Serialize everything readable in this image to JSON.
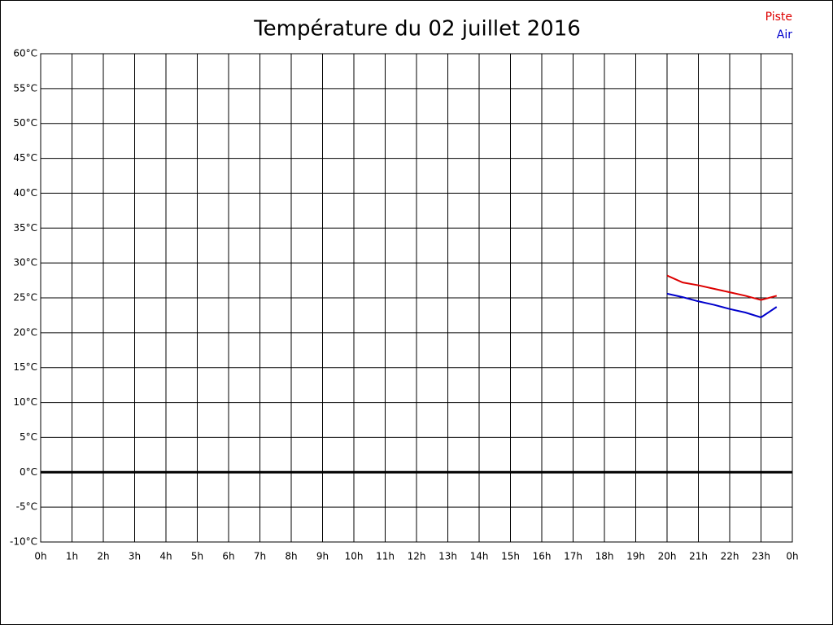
{
  "chart_data": {
    "type": "line",
    "title": "Température du 02 juillet 2016",
    "x": [
      20,
      20.5,
      21,
      21.5,
      22,
      22.5,
      23,
      23.5
    ],
    "series": [
      {
        "name": "Piste",
        "color": "#dd0000",
        "values": [
          28.2,
          27.2,
          26.8,
          26.3,
          25.8,
          25.3,
          24.7,
          25.3
        ]
      },
      {
        "name": "Air",
        "color": "#0000cc",
        "values": [
          25.6,
          25.1,
          24.5,
          24.0,
          23.4,
          22.9,
          22.2,
          23.7
        ]
      }
    ],
    "xlim": [
      0,
      24
    ],
    "xticks": [
      {
        "value": 0,
        "label": "0h"
      },
      {
        "value": 1,
        "label": "1h"
      },
      {
        "value": 2,
        "label": "2h"
      },
      {
        "value": 3,
        "label": "3h"
      },
      {
        "value": 4,
        "label": "4h"
      },
      {
        "value": 5,
        "label": "5h"
      },
      {
        "value": 6,
        "label": "6h"
      },
      {
        "value": 7,
        "label": "7h"
      },
      {
        "value": 8,
        "label": "8h"
      },
      {
        "value": 9,
        "label": "9h"
      },
      {
        "value": 10,
        "label": "10h"
      },
      {
        "value": 11,
        "label": "11h"
      },
      {
        "value": 12,
        "label": "12h"
      },
      {
        "value": 13,
        "label": "13h"
      },
      {
        "value": 14,
        "label": "14h"
      },
      {
        "value": 15,
        "label": "15h"
      },
      {
        "value": 16,
        "label": "16h"
      },
      {
        "value": 17,
        "label": "17h"
      },
      {
        "value": 18,
        "label": "18h"
      },
      {
        "value": 19,
        "label": "19h"
      },
      {
        "value": 20,
        "label": "20h"
      },
      {
        "value": 21,
        "label": "21h"
      },
      {
        "value": 22,
        "label": "22h"
      },
      {
        "value": 23,
        "label": "23h"
      },
      {
        "value": 24,
        "label": "0h"
      }
    ],
    "ylim": [
      -10,
      60
    ],
    "yticks": [
      {
        "value": -10,
        "label": "-10°C"
      },
      {
        "value": -5,
        "label": "-5°C"
      },
      {
        "value": 0,
        "label": "0°C"
      },
      {
        "value": 5,
        "label": "5°C"
      },
      {
        "value": 10,
        "label": "10°C"
      },
      {
        "value": 15,
        "label": "15°C"
      },
      {
        "value": 20,
        "label": "20°C"
      },
      {
        "value": 25,
        "label": "25°C"
      },
      {
        "value": 30,
        "label": "30°C"
      },
      {
        "value": 35,
        "label": "35°C"
      },
      {
        "value": 40,
        "label": "40°C"
      },
      {
        "value": 45,
        "label": "45°C"
      },
      {
        "value": 50,
        "label": "50°C"
      },
      {
        "value": 55,
        "label": "55°C"
      },
      {
        "value": 60,
        "label": "60°C"
      }
    ],
    "grid": true,
    "legend": "top-right"
  }
}
